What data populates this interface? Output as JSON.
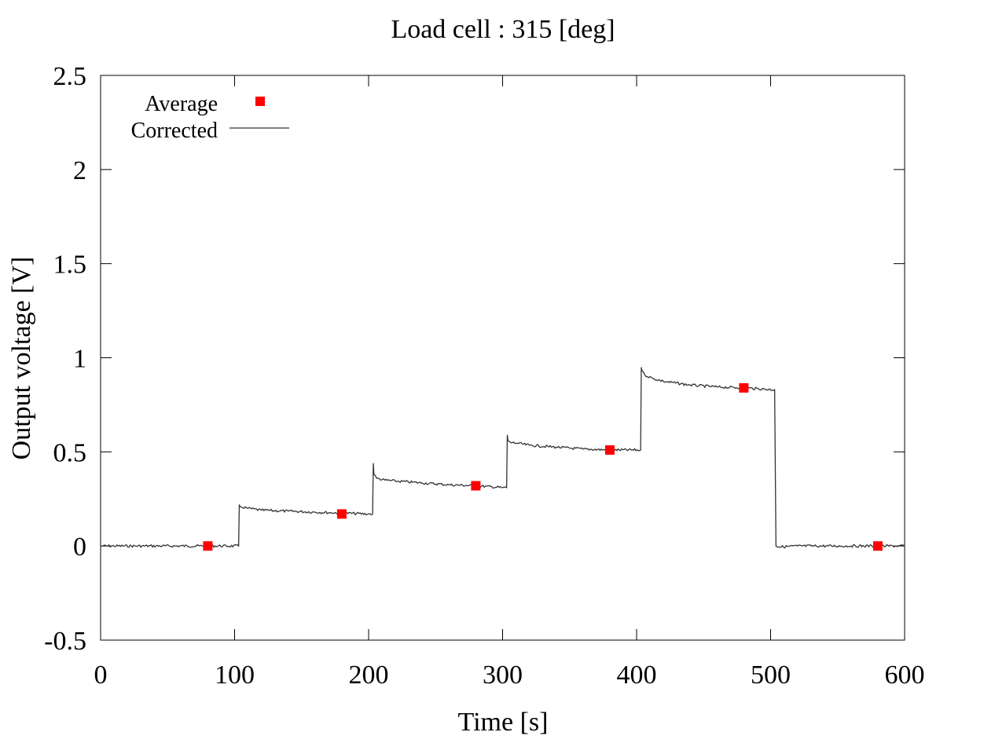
{
  "chart_data": {
    "type": "line",
    "title": "Load cell : 315 [deg]",
    "xlabel": "Time [s]",
    "ylabel": "Output voltage [V]",
    "xlim": [
      0,
      600
    ],
    "ylim": [
      -0.5,
      2.5
    ],
    "x_ticks": [
      0,
      100,
      200,
      300,
      400,
      500,
      600
    ],
    "y_ticks": [
      -0.5,
      0,
      0.5,
      1,
      1.5,
      2,
      2.5
    ],
    "x_tick_labels": [
      "0",
      "100",
      "200",
      "300",
      "400",
      "500",
      "600"
    ],
    "y_tick_labels": [
      "-0.5",
      "0",
      "0.5",
      "1",
      "1.5",
      "2",
      "2.5"
    ],
    "grid": false,
    "legend_position": "top-left",
    "series": [
      {
        "name": "Average",
        "kind": "scatter",
        "marker": "square",
        "color": "#ff0000",
        "x": [
          80,
          180,
          280,
          380,
          480,
          580
        ],
        "y": [
          0.0,
          0.17,
          0.32,
          0.51,
          0.84,
          0.0
        ]
      },
      {
        "name": "Corrected",
        "kind": "line",
        "color": "#333333",
        "x": [
          0,
          103,
          103.5,
          104,
          110,
          120,
          140,
          160,
          180,
          200,
          203,
          203.5,
          204,
          206,
          212,
          220,
          240,
          260,
          280,
          300,
          303,
          303.5,
          304,
          306,
          312,
          320,
          340,
          360,
          380,
          403,
          403.5,
          404,
          406,
          412,
          420,
          440,
          460,
          480,
          503,
          504,
          506,
          520,
          560,
          600
        ],
        "y": [
          0.0,
          0.0,
          0.22,
          0.21,
          0.2,
          0.19,
          0.185,
          0.18,
          0.175,
          0.17,
          0.17,
          0.44,
          0.38,
          0.36,
          0.35,
          0.345,
          0.335,
          0.325,
          0.32,
          0.31,
          0.31,
          0.59,
          0.56,
          0.55,
          0.545,
          0.535,
          0.525,
          0.515,
          0.51,
          0.51,
          0.95,
          0.93,
          0.91,
          0.89,
          0.875,
          0.855,
          0.845,
          0.84,
          0.83,
          0.0,
          -0.005,
          0.0,
          0.0,
          0.0
        ]
      }
    ]
  }
}
